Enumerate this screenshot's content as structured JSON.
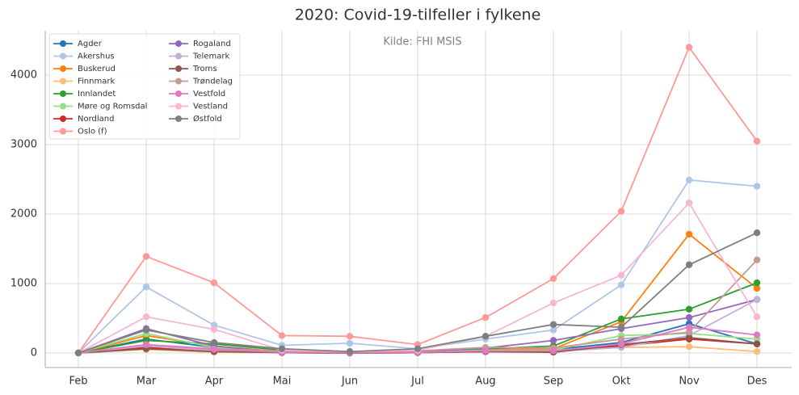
{
  "chart_data": {
    "type": "line",
    "title": "2020: Covid-19-tilfeller i fylkene",
    "annotation": "Kilde: FHI MSIS",
    "categories": [
      "Feb",
      "Mar",
      "Apr",
      "Mai",
      "Jun",
      "Jul",
      "Aug",
      "Sep",
      "Okt",
      "Nov",
      "Des"
    ],
    "ylim": [
      -210,
      4640
    ],
    "yticks": [
      0,
      1000,
      2000,
      3000,
      4000
    ],
    "grid": true,
    "legend": "upper left",
    "series": [
      {
        "name": "Agder",
        "color": "#1f77b4",
        "values": [
          0,
          200,
          80,
          10,
          5,
          10,
          30,
          50,
          150,
          420,
          130
        ]
      },
      {
        "name": "Akershus",
        "color": "#aec7e8",
        "values": [
          0,
          950,
          400,
          110,
          140,
          60,
          200,
          330,
          980,
          2490,
          2400
        ]
      },
      {
        "name": "Buskerud",
        "color": "#ff7f0e",
        "values": [
          0,
          250,
          100,
          20,
          10,
          20,
          50,
          60,
          450,
          1710,
          930
        ]
      },
      {
        "name": "Finnmark",
        "color": "#ffbb78",
        "values": [
          0,
          50,
          10,
          5,
          0,
          5,
          20,
          30,
          80,
          90,
          20
        ]
      },
      {
        "name": "Innlandet",
        "color": "#2ca02c",
        "values": [
          0,
          180,
          130,
          40,
          10,
          20,
          60,
          100,
          490,
          630,
          1010
        ]
      },
      {
        "name": "Møre og Romsdal",
        "color": "#98df8a",
        "values": [
          0,
          280,
          80,
          10,
          5,
          10,
          40,
          40,
          250,
          280,
          200
        ]
      },
      {
        "name": "Nordland",
        "color": "#d62728",
        "values": [
          0,
          80,
          30,
          5,
          0,
          5,
          20,
          20,
          100,
          200,
          130
        ]
      },
      {
        "name": "Oslo (f)",
        "color": "#ff9896",
        "values": [
          0,
          1390,
          1010,
          250,
          240,
          120,
          510,
          1070,
          2040,
          4400,
          3050
        ]
      },
      {
        "name": "Rogaland",
        "color": "#9467bd",
        "values": [
          0,
          350,
          100,
          10,
          5,
          20,
          70,
          180,
          350,
          510,
          770
        ]
      },
      {
        "name": "Telemark",
        "color": "#c5b0d5",
        "values": [
          0,
          100,
          30,
          5,
          0,
          5,
          30,
          20,
          80,
          250,
          770
        ]
      },
      {
        "name": "Troms",
        "color": "#8c564b",
        "values": [
          0,
          60,
          20,
          5,
          0,
          5,
          20,
          10,
          120,
          220,
          130
        ]
      },
      {
        "name": "Trøndelag",
        "color": "#c49c94",
        "values": [
          0,
          120,
          60,
          30,
          10,
          30,
          80,
          70,
          200,
          300,
          1340
        ]
      },
      {
        "name": "Vestfold",
        "color": "#e377c2",
        "values": [
          0,
          120,
          50,
          10,
          5,
          10,
          30,
          30,
          130,
          370,
          260
        ]
      },
      {
        "name": "Vestland",
        "color": "#f7b6d2",
        "values": [
          0,
          520,
          340,
          40,
          20,
          40,
          240,
          720,
          1120,
          2160,
          520
        ]
      },
      {
        "name": "Østfold",
        "color": "#7f7f7f",
        "values": [
          0,
          330,
          150,
          60,
          20,
          60,
          240,
          410,
          370,
          1270,
          1730
        ]
      }
    ]
  }
}
